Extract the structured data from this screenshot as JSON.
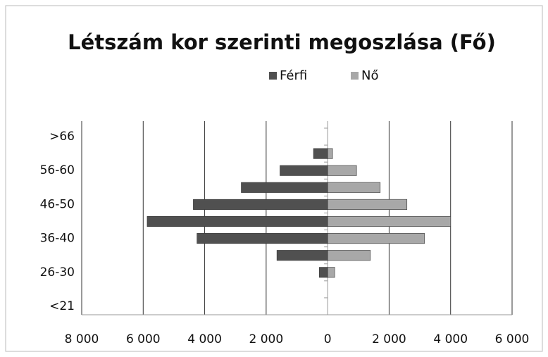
{
  "chart_data": {
    "type": "pyramid",
    "title": "Létszám kor szerinti megoszlása (Fő)",
    "categories": [
      "<21",
      null,
      "26-30",
      null,
      "36-40",
      null,
      "46-50",
      null,
      "56-60",
      null,
      ">66"
    ],
    "series": [
      {
        "name": "Férfi",
        "color": "#505050",
        "values": [
          0,
          0,
          -270,
          -1650,
          -4250,
          -5870,
          -4370,
          -2810,
          -1550,
          -460,
          0
        ]
      },
      {
        "name": "Nő",
        "color": "#a8a8a8",
        "values": [
          0,
          0,
          230,
          1390,
          3150,
          4000,
          2580,
          1710,
          940,
          160,
          0
        ]
      }
    ],
    "xlim": [
      -8000,
      6000
    ],
    "xticks": [
      {
        "value": -8000,
        "label": "8 000"
      },
      {
        "value": -6000,
        "label": "6 000"
      },
      {
        "value": -4000,
        "label": "4 000"
      },
      {
        "value": -2000,
        "label": "2 000"
      },
      0,
      {
        "value": 2000,
        "label": "2 000"
      },
      {
        "value": 4000,
        "label": "4 000"
      },
      {
        "value": 6000,
        "label": "6 000"
      }
    ],
    "grid": true,
    "legend": "top"
  }
}
